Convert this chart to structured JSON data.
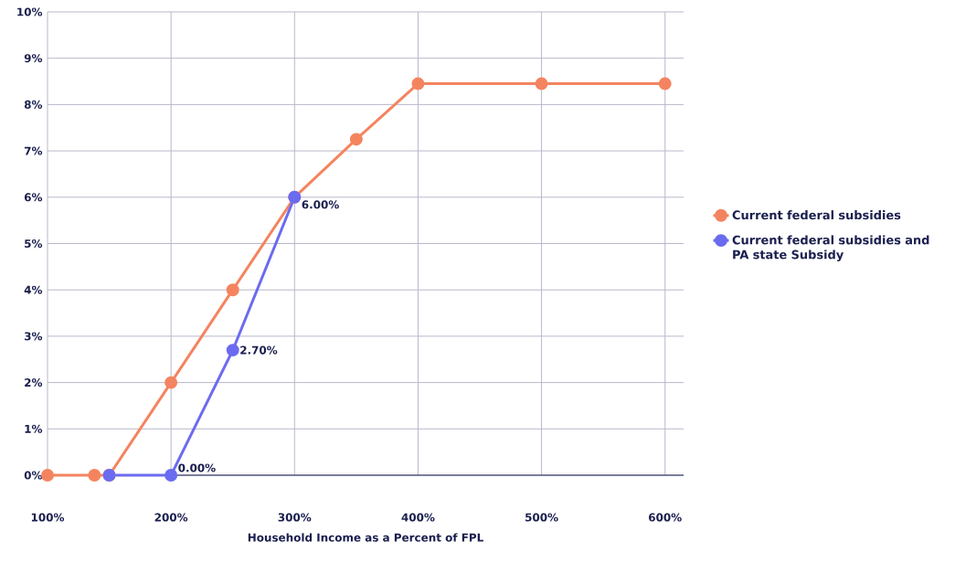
{
  "chart_data": {
    "type": "line",
    "xlabel": "Household Income as a Percent of FPL",
    "xlim": [
      100,
      615
    ],
    "ylim": [
      0,
      10
    ],
    "xticks": [
      {
        "value": 100,
        "label": "100%"
      },
      {
        "value": 200,
        "label": "200%"
      },
      {
        "value": 300,
        "label": "300%"
      },
      {
        "value": 400,
        "label": "400%"
      },
      {
        "value": 500,
        "label": "500%"
      },
      {
        "value": 600,
        "label": "600%"
      }
    ],
    "yticks": [
      {
        "value": 0,
        "label": "0%"
      },
      {
        "value": 1,
        "label": "1%"
      },
      {
        "value": 2,
        "label": "2%"
      },
      {
        "value": 3,
        "label": "3%"
      },
      {
        "value": 4,
        "label": "4%"
      },
      {
        "value": 5,
        "label": "5%"
      },
      {
        "value": 6,
        "label": "6%"
      },
      {
        "value": 7,
        "label": "7%"
      },
      {
        "value": 8,
        "label": "8%"
      },
      {
        "value": 9,
        "label": "9%"
      },
      {
        "value": 10,
        "label": "10%"
      }
    ],
    "grid": true,
    "legend": "right",
    "marker": "circle",
    "line_style": "solid",
    "series": [
      {
        "name": "Current federal subsidies",
        "color": "#f4845f",
        "x": [
          100,
          138,
          150,
          200,
          250,
          300,
          350,
          400,
          500,
          600
        ],
        "values": [
          0,
          0,
          0,
          2,
          4,
          6,
          7.25,
          8.45,
          8.45,
          8.45
        ]
      },
      {
        "name": "Current federal subsidies and PA state Subsidy",
        "color": "#6b6bf0",
        "x": [
          150,
          200,
          250,
          300
        ],
        "values": [
          0,
          0,
          2.7,
          6
        ],
        "value_labels": [
          null,
          "0.00%",
          "2.70%",
          "6.00%"
        ]
      }
    ]
  }
}
